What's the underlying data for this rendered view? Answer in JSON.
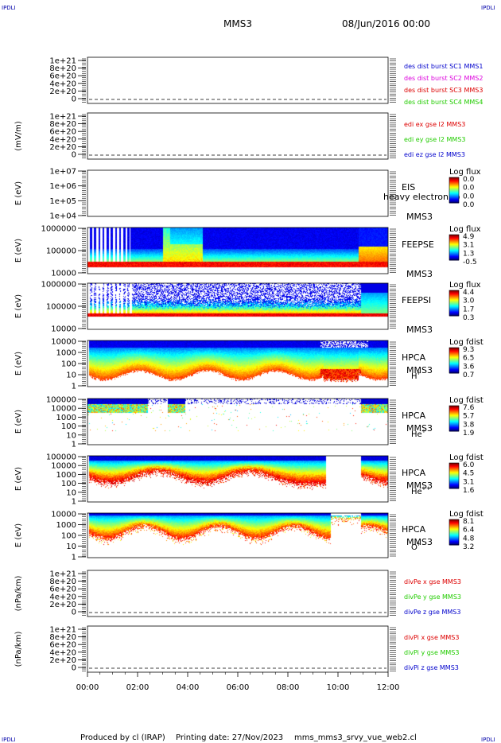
{
  "header": {
    "corner_tl": "IPDLI",
    "corner_tr": "IPDLI",
    "corner_bl": "IPDLI",
    "corner_br": "IPDLI",
    "title": "MMS3",
    "date": "08/Jun/2016 00:00"
  },
  "footer": {
    "produced": "Produced by cl (IRAP)",
    "printing": "Printing date: 27/Nov/2023",
    "file": "mms_mms3_srvy_vue_web2.cl"
  },
  "chart_data": {
    "type": "stacked-panels",
    "x": {
      "ticks": [
        "00:00",
        "02:00",
        "04:00",
        "06:00",
        "08:00",
        "10:00",
        "12:00"
      ],
      "range_hours": [
        0,
        12
      ]
    },
    "colors": {
      "red": "#dd0000",
      "green": "#22cc00",
      "blue": "#0000cc",
      "magenta": "#dd00dd"
    },
    "panels": [
      {
        "type": "line",
        "ylabel": "",
        "yticks": [
          "1e+21",
          "8e+20",
          "6e+20",
          "4e+20",
          "2e+20",
          "0"
        ],
        "legend": [
          {
            "text": "des dist burst SC1 MMS1",
            "color": "#0000cc"
          },
          {
            "text": "des dist burst SC2 MMS2",
            "color": "#dd00dd"
          },
          {
            "text": "des dist burst SC3 MMS3",
            "color": "#dd0000"
          },
          {
            "text": "des dist burst SC4 MMS4",
            "color": "#22cc00"
          }
        ]
      },
      {
        "type": "line",
        "ylabel": "(mV/m)",
        "yticks": [
          "1e+21",
          "8e+20",
          "6e+20",
          "4e+20",
          "2e+20",
          "0"
        ],
        "legend": [
          {
            "text": "edi ex gse l2 MMS3",
            "color": "#dd0000"
          },
          {
            "text": "edi ey gse l2 MMS3",
            "color": "#22cc00"
          },
          {
            "text": "edi ez gse l2 MMS3",
            "color": "#0000cc"
          }
        ]
      },
      {
        "type": "spectrogram",
        "ylabel": "E (eV)",
        "yticks": [
          "1e+07",
          "1e+06",
          "1e+05",
          "1e+04"
        ],
        "instrument": "EIS",
        "sc": "MMS3",
        "overlay": "heavy electron to",
        "cbar_title": "Log flux",
        "cbar_ticks": [
          "0.0",
          "0.0",
          "0.0",
          "0.0"
        ],
        "profile": "empty"
      },
      {
        "type": "spectrogram",
        "ylabel": "E (eV)",
        "yticks": [
          "1000000",
          "100000",
          "10000"
        ],
        "instrument": "FEEPSE",
        "sc": "MMS3",
        "cbar_title": "Log flux",
        "cbar_ticks": [
          "4.9",
          "3.1",
          "1.3",
          "-0.5"
        ],
        "profile": "feepse"
      },
      {
        "type": "spectrogram",
        "ylabel": "E (eV)",
        "yticks": [
          "1000000",
          "100000",
          "10000"
        ],
        "instrument": "FEEPSI",
        "sc": "MMS3",
        "cbar_title": "Log flux",
        "cbar_ticks": [
          "4.4",
          "3.0",
          "1.7",
          "0.3"
        ],
        "profile": "feepsi"
      },
      {
        "type": "spectrogram",
        "ylabel": "E (eV)",
        "yticks": [
          "10000",
          "1000",
          "100",
          "10",
          "1"
        ],
        "instrument": "HPCA",
        "sc": "MMS3",
        "species": "H",
        "species_sup": "+",
        "cbar_title": "Log fdist",
        "cbar_ticks": [
          "9.3",
          "6.5",
          "3.6",
          "0.7"
        ],
        "profile": "hplus"
      },
      {
        "type": "spectrogram",
        "ylabel": "E (eV)",
        "yticks": [
          "100000",
          "10000",
          "1000",
          "100",
          "10",
          "1"
        ],
        "instrument": "HPCA",
        "sc": "MMS3",
        "species": "He",
        "species_sup": "+",
        "cbar_title": "Log fdist",
        "cbar_ticks": [
          "7.6",
          "5.7",
          "3.8",
          "1.9"
        ],
        "profile": "heplus"
      },
      {
        "type": "spectrogram",
        "ylabel": "E (eV)",
        "yticks": [
          "100000",
          "10000",
          "1000",
          "100",
          "10",
          "1"
        ],
        "instrument": "HPCA",
        "sc": "MMS3",
        "species": "He",
        "species_sup": "++",
        "cbar_title": "Log fdist",
        "cbar_ticks": [
          "6.0",
          "4.5",
          "3.1",
          "1.6"
        ],
        "profile": "heplusplus"
      },
      {
        "type": "spectrogram",
        "ylabel": "E (eV)",
        "yticks": [
          "10000",
          "1000",
          "100",
          "10",
          "1"
        ],
        "instrument": "HPCA",
        "sc": "MMS3",
        "species": "O",
        "species_sup": "+",
        "cbar_title": "Log fdist",
        "cbar_ticks": [
          "8.1",
          "6.4",
          "4.8",
          "3.2"
        ],
        "profile": "oplus"
      },
      {
        "type": "line",
        "ylabel": "(nPa/km)",
        "yticks": [
          "1e+21",
          "8e+20",
          "6e+20",
          "4e+20",
          "2e+20",
          "0"
        ],
        "legend": [
          {
            "text": "divPe x gse MMS3",
            "color": "#dd0000"
          },
          {
            "text": "divPe y gse MMS3",
            "color": "#22cc00"
          },
          {
            "text": "divPe z gse MMS3",
            "color": "#0000cc"
          }
        ]
      },
      {
        "type": "line",
        "ylabel": "(nPa/km)",
        "yticks": [
          "1e+21",
          "8e+20",
          "6e+20",
          "4e+20",
          "2e+20",
          "0"
        ],
        "legend": [
          {
            "text": "divPi x gse MMS3",
            "color": "#dd0000"
          },
          {
            "text": "divPi y gse MMS3",
            "color": "#22cc00"
          },
          {
            "text": "divPi z gse MMS3",
            "color": "#0000cc"
          }
        ]
      }
    ]
  }
}
